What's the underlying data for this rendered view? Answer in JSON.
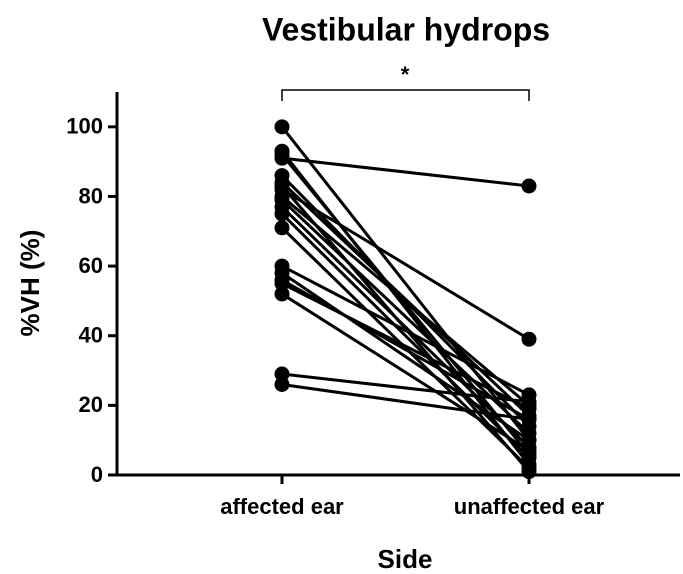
{
  "chart_data": {
    "type": "line",
    "title": "Vestibular hydrops",
    "x_label": "Side",
    "y_label": "%VH (%)",
    "annotation": "*",
    "categories": [
      "affected ear",
      "unaffected ear"
    ],
    "color": "#000000",
    "ylim": [
      0,
      110
    ],
    "yticks": [
      0,
      20,
      40,
      60,
      80,
      100
    ],
    "series": [
      {
        "values": [
          100,
          10
        ]
      },
      {
        "values": [
          93,
          3
        ]
      },
      {
        "values": [
          92,
          6
        ]
      },
      {
        "values": [
          91,
          83
        ]
      },
      {
        "values": [
          86,
          14
        ]
      },
      {
        "values": [
          84,
          17
        ]
      },
      {
        "values": [
          83,
          1
        ]
      },
      {
        "values": [
          82,
          39
        ]
      },
      {
        "values": [
          80,
          20
        ]
      },
      {
        "values": [
          79,
          12
        ]
      },
      {
        "values": [
          77,
          8
        ]
      },
      {
        "values": [
          75,
          5
        ]
      },
      {
        "values": [
          71,
          2
        ]
      },
      {
        "values": [
          60,
          23
        ]
      },
      {
        "values": [
          58,
          10
        ]
      },
      {
        "values": [
          56,
          16
        ]
      },
      {
        "values": [
          55,
          19
        ]
      },
      {
        "values": [
          52,
          7
        ]
      },
      {
        "values": [
          29,
          21
        ]
      },
      {
        "values": [
          26,
          16
        ]
      }
    ]
  }
}
